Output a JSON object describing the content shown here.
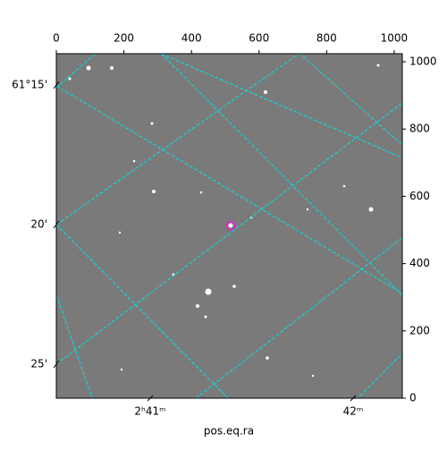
{
  "chart_data": {
    "type": "image",
    "xlabel": "pos.eq.ra",
    "xlim": [
      0,
      1024
    ],
    "xticks": [
      0,
      200,
      400,
      600,
      800,
      1000
    ],
    "ylim": [
      0,
      1024
    ],
    "yticks": [
      0,
      200,
      400,
      600,
      800,
      1000
    ],
    "dec_tick_labels": [
      "61°15'",
      "20'",
      "25'"
    ],
    "ra_tick_labels": [
      "2ʰ41ᵐ",
      "42ᵐ"
    ],
    "grid_color": "#00e5e5",
    "marker_color": "#e020e0"
  }
}
